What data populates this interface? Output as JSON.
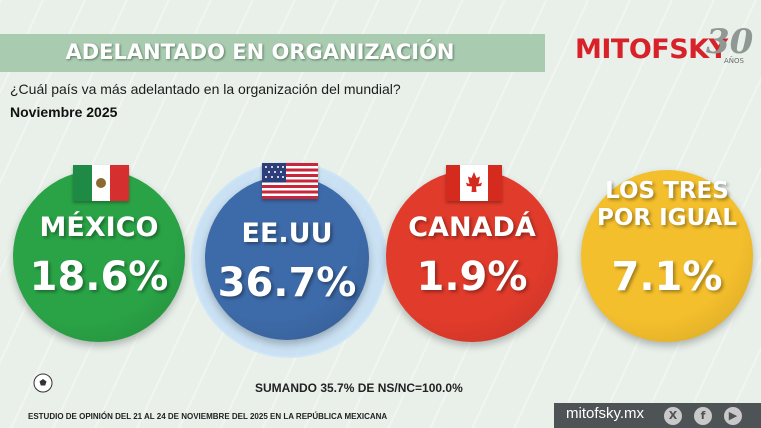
{
  "header": {
    "title": "ADELANTADO EN ORGANIZACIÓN",
    "brand": "MITOFSKY",
    "anniversary": "30",
    "anniversary_suffix": "AÑOS"
  },
  "question": "¿Cuál país va más adelantado en la organización del mundial?",
  "date": "Noviembre 2025",
  "chart_data": {
    "type": "bar",
    "categories": [
      "MÉXICO",
      "EE.UU",
      "CANADÁ",
      "LOS TRES POR IGUAL"
    ],
    "values": [
      18.6,
      36.7,
      1.9,
      7.1
    ],
    "value_labels": [
      "18.6%",
      "36.7%",
      "1.9%",
      "7.1%"
    ],
    "label_lines": [
      [
        "MÉXICO"
      ],
      [
        "EE.UU"
      ],
      [
        "CANADÁ"
      ],
      [
        "LOS TRES",
        "POR IGUAL"
      ]
    ],
    "colors": [
      "#2aa346",
      "#3d6aa8",
      "#e13b2b",
      "#f4bf2c"
    ],
    "title": "ADELANTADO EN ORGANIZACIÓN",
    "note": "SUMANDO 35.7% DE NS/NC=100.0%"
  },
  "footer": {
    "source": "ESTUDIO DE OPINIÓN DEL 21 AL 24 DE NOVIEMBRE DEL 2025 EN LA REPÚBLICA MEXICANA",
    "website": "mitofsky.mx",
    "social_icons": [
      "x-icon",
      "facebook-icon",
      "youtube-icon"
    ]
  }
}
